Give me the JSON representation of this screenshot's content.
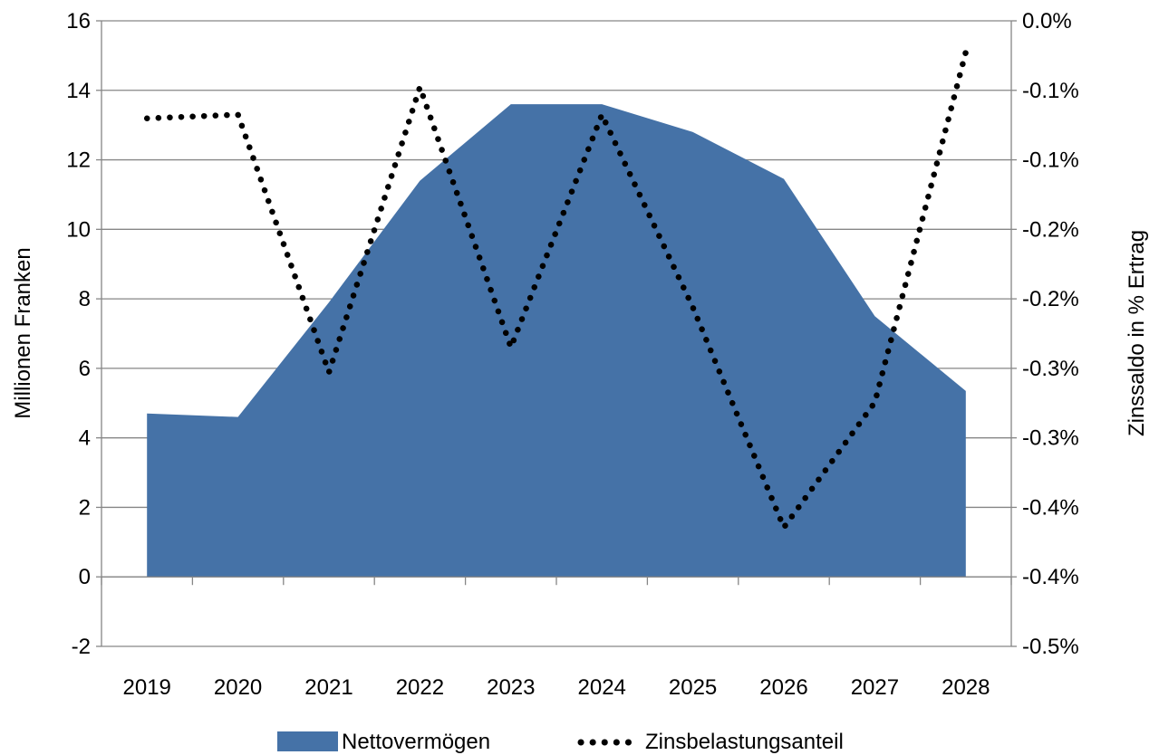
{
  "chart_data": {
    "type": "area",
    "categories": [
      "2019",
      "2020",
      "2021",
      "2022",
      "2023",
      "2024",
      "2025",
      "2026",
      "2027",
      "2028"
    ],
    "series": [
      {
        "name": "Nettovermögen",
        "kind": "area",
        "axis": "left",
        "color": "#4572A7",
        "values": [
          4.7,
          4.6,
          7.9,
          11.4,
          13.6,
          13.6,
          12.8,
          11.45,
          7.5,
          5.35
        ]
      },
      {
        "name": "Zinsbelastungsanteil",
        "kind": "line",
        "axis": "right",
        "color": "#000000",
        "style": "dotted",
        "values": [
          -0.078,
          -0.075,
          -0.281,
          -0.053,
          -0.261,
          -0.075,
          -0.229,
          -0.405,
          -0.305,
          -0.025
        ]
      }
    ],
    "xlabel": "",
    "ylabel": "Millionen Franken",
    "y2label": "Zinssaldo in % Ertrag",
    "ylim": [
      -2,
      16
    ],
    "y2lim": [
      -0.5,
      0.0
    ],
    "yticks": [
      "-2",
      "0",
      "2",
      "4",
      "6",
      "8",
      "10",
      "12",
      "14",
      "16"
    ],
    "y2ticks": [
      "-0.5%",
      "-0.4%",
      "-0.4%",
      "-0.3%",
      "-0.3%",
      "-0.2%",
      "-0.2%",
      "-0.1%",
      "-0.1%",
      "0.0%"
    ],
    "grid": true,
    "legend": "bottom"
  }
}
